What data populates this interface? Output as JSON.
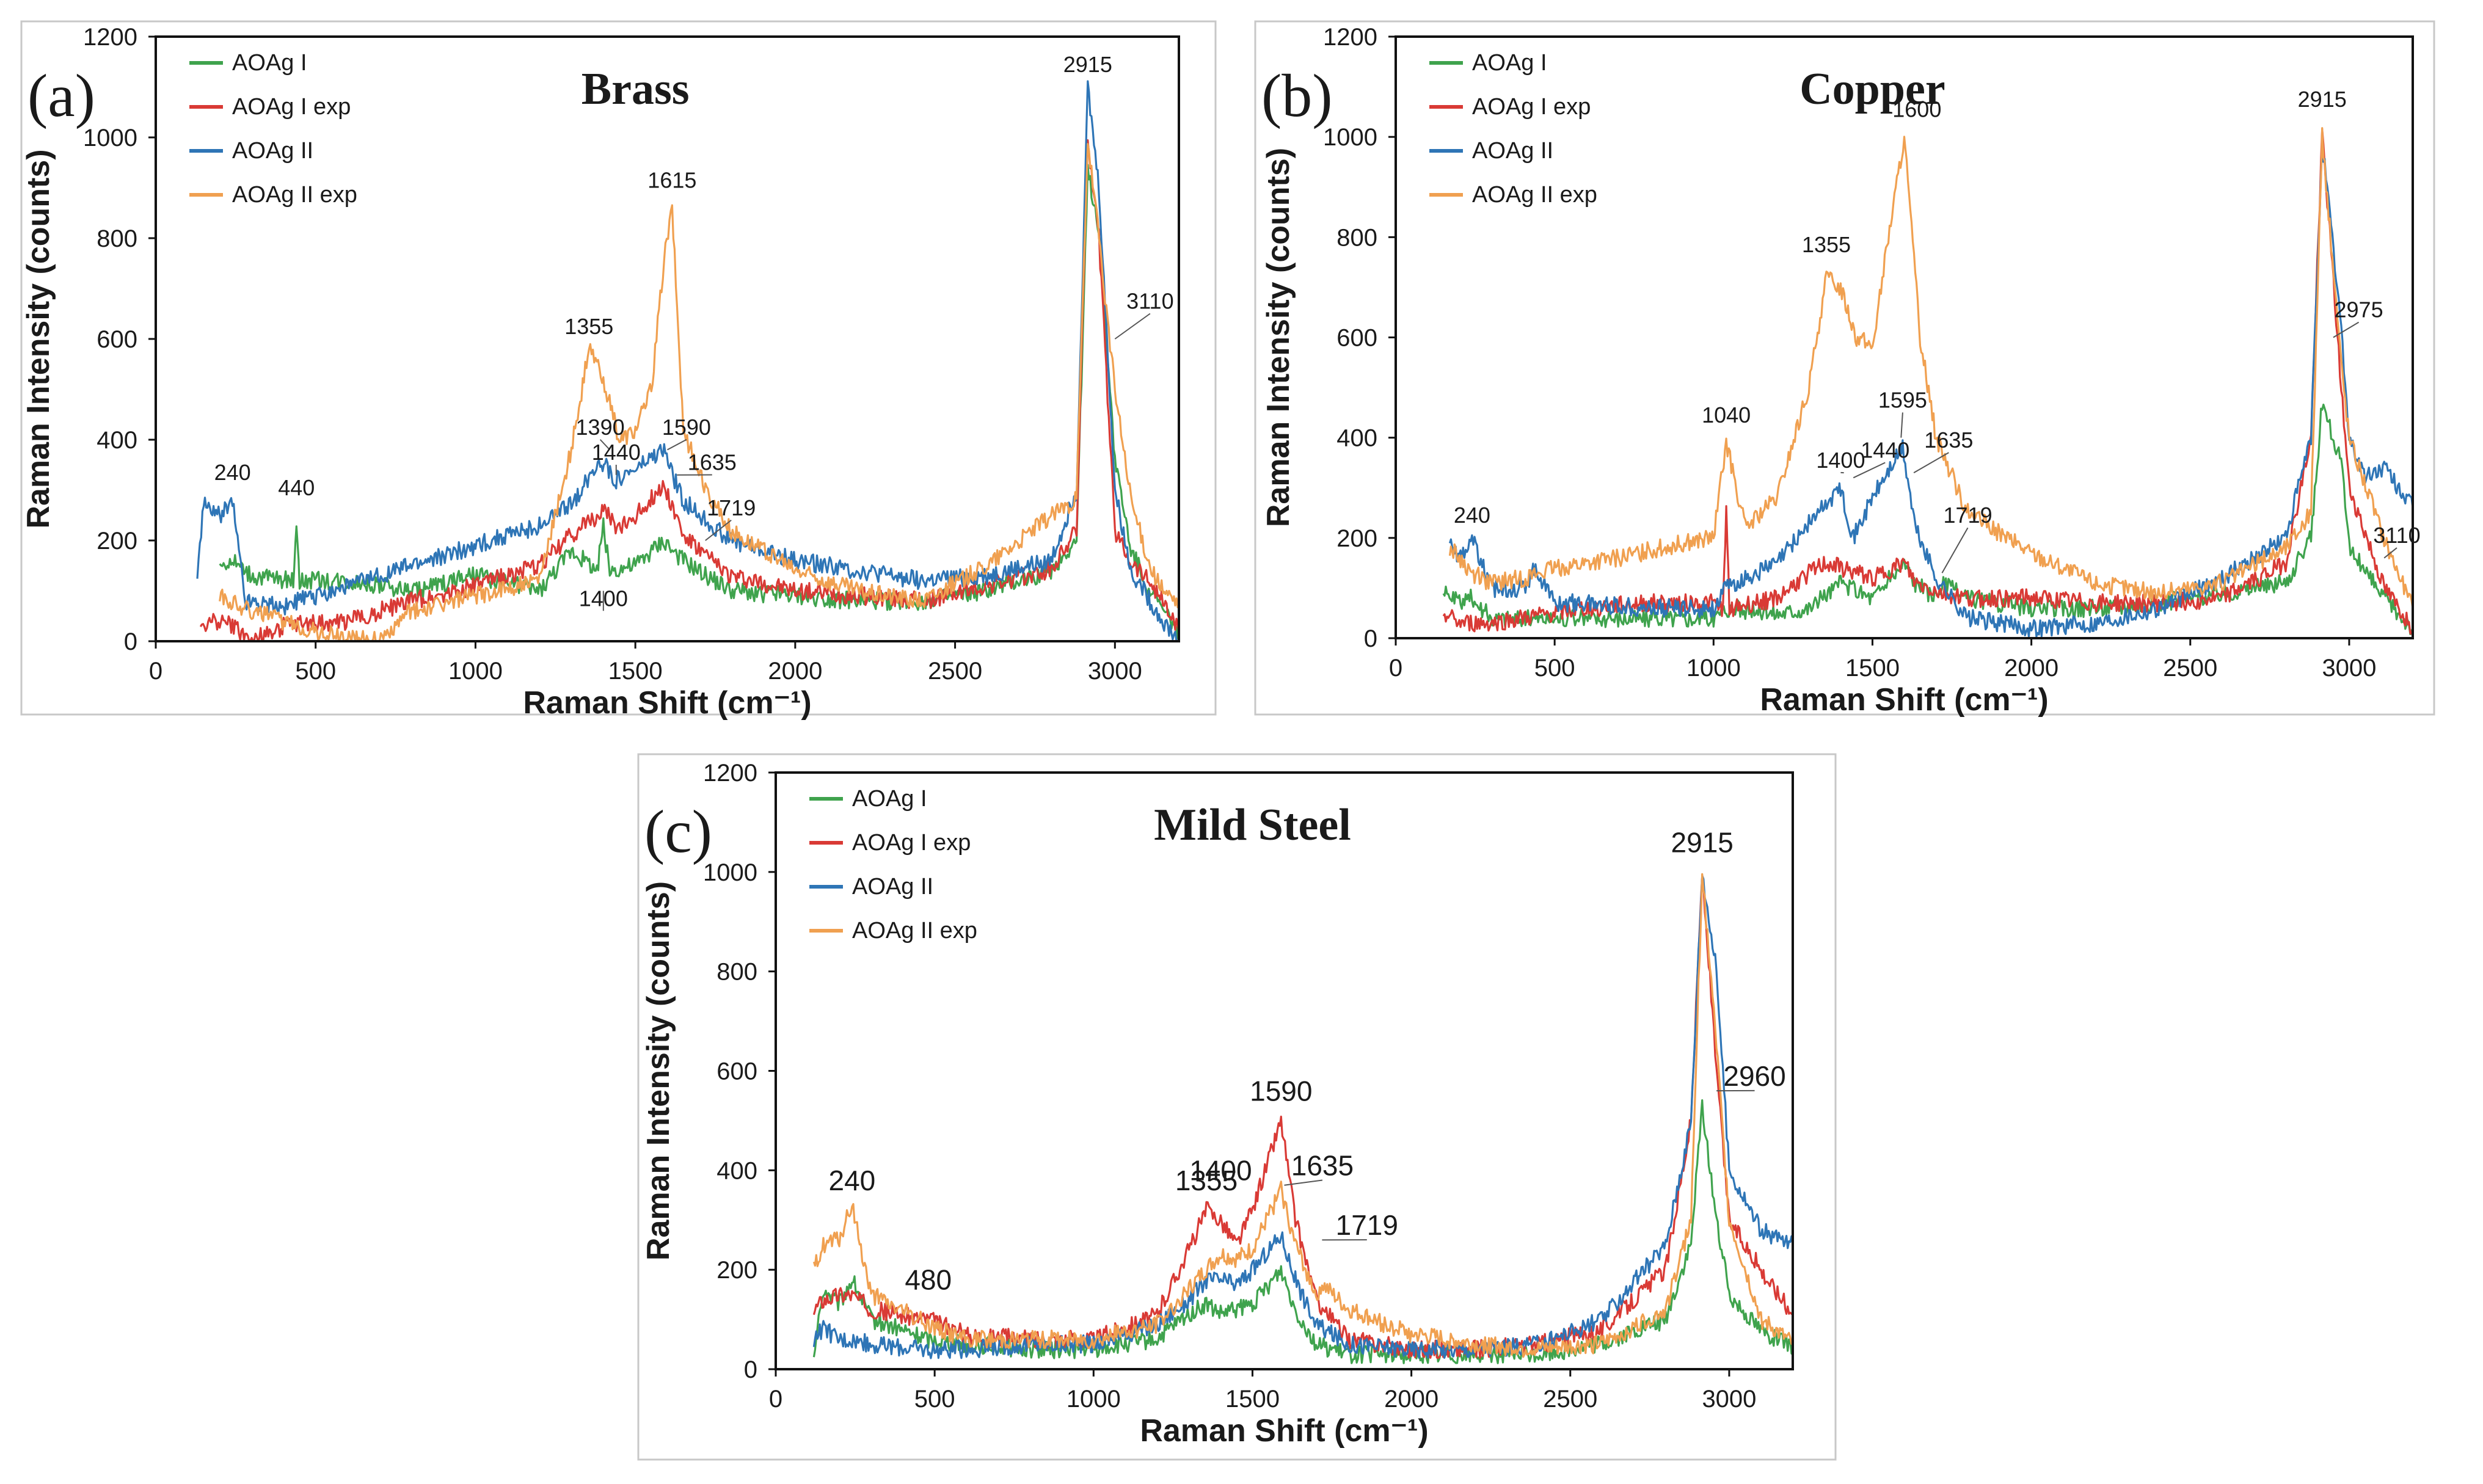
{
  "figure": {
    "colors": {
      "aoag1": "#3fa34d",
      "aoag1_exp": "#d93a35",
      "aoag2": "#2e75b6",
      "aoag2_exp": "#f0a050"
    }
  },
  "chart_data": [
    {
      "type": "line",
      "panel_label": "(a)",
      "title": "Brass",
      "xlabel": "Raman Shift (cm⁻¹)",
      "ylabel": "Raman Intensity (counts)",
      "xlim": [
        0,
        3200
      ],
      "ylim": [
        0,
        1200
      ],
      "xticks": [
        "0",
        "500",
        "1000",
        "1500",
        "2000",
        "2500",
        "3000"
      ],
      "yticks": [
        "0",
        "200",
        "400",
        "600",
        "800",
        "1000",
        "1200"
      ],
      "legend_position": "top-left",
      "series": [
        {
          "name": "AOAg I",
          "color_key": "aoag1",
          "x": [
            200,
            240,
            300,
            430,
            440,
            450,
            600,
            800,
            1000,
            1200,
            1300,
            1380,
            1400,
            1420,
            1500,
            1590,
            1615,
            1650,
            1719,
            1800,
            2000,
            2200,
            2400,
            2600,
            2800,
            2880,
            2915,
            2950,
            3000,
            3050,
            3110,
            3150,
            3200
          ],
          "y": [
            150,
            160,
            130,
            120,
            240,
            120,
            120,
            100,
            130,
            100,
            180,
            140,
            230,
            140,
            150,
            200,
            180,
            160,
            130,
            100,
            90,
            80,
            80,
            100,
            140,
            200,
            930,
            820,
            360,
            180,
            100,
            60,
            20
          ]
        },
        {
          "name": "AOAg I exp",
          "color_key": "aoag1_exp",
          "x": [
            140,
            200,
            240,
            300,
            400,
            600,
            800,
            1000,
            1200,
            1300,
            1400,
            1450,
            1500,
            1590,
            1615,
            1650,
            1719,
            1800,
            2000,
            2200,
            2400,
            2600,
            2800,
            2880,
            2915,
            2950,
            3000,
            3050,
            3110,
            3150,
            3200
          ],
          "y": [
            30,
            40,
            30,
            0,
            30,
            40,
            80,
            110,
            150,
            210,
            260,
            220,
            250,
            310,
            270,
            210,
            170,
            130,
            100,
            90,
            80,
            110,
            140,
            220,
            1000,
            800,
            220,
            160,
            120,
            80,
            20
          ]
        },
        {
          "name": "AOAg II",
          "color_key": "aoag2",
          "x": [
            130,
            150,
            200,
            240,
            280,
            300,
            400,
            600,
            800,
            1000,
            1200,
            1300,
            1390,
            1440,
            1500,
            1590,
            1615,
            1650,
            1719,
            1800,
            2000,
            2200,
            2400,
            2600,
            2800,
            2880,
            2915,
            2950,
            3000,
            3050,
            3110,
            3150,
            3200
          ],
          "y": [
            130,
            270,
            250,
            280,
            80,
            80,
            70,
            110,
            150,
            190,
            230,
            270,
            360,
            320,
            340,
            380,
            330,
            280,
            240,
            200,
            160,
            140,
            120,
            130,
            160,
            300,
            1100,
            900,
            300,
            140,
            80,
            40,
            0
          ]
        },
        {
          "name": "AOAg II exp",
          "color_key": "aoag2_exp",
          "x": [
            200,
            300,
            400,
            500,
            600,
            700,
            800,
            1000,
            1200,
            1300,
            1355,
            1400,
            1450,
            1500,
            1550,
            1590,
            1615,
            1650,
            1719,
            1800,
            2000,
            2200,
            2400,
            2600,
            2700,
            2800,
            2880,
            2915,
            2950,
            3000,
            3050,
            3110,
            3150,
            3200
          ],
          "y": [
            90,
            60,
            40,
            20,
            10,
            0,
            60,
            90,
            120,
            380,
            580,
            520,
            400,
            420,
            500,
            760,
            860,
            420,
            300,
            220,
            140,
            100,
            80,
            150,
            200,
            250,
            280,
            990,
            800,
            500,
            280,
            150,
            100,
            70
          ]
        }
      ],
      "annotations": [
        "240",
        "440",
        "1355",
        "1390",
        "1440",
        "1615",
        "1590",
        "1635",
        "1719",
        "1400",
        "2915",
        "3110"
      ]
    },
    {
      "type": "line",
      "panel_label": "(b)",
      "title": "Copper",
      "xlabel": "Raman Shift (cm⁻¹)",
      "ylabel": "Raman Intensity (counts)",
      "xlim": [
        0,
        3200
      ],
      "ylim": [
        0,
        1200
      ],
      "xticks": [
        "0",
        "500",
        "1000",
        "1500",
        "2000",
        "2500",
        "3000"
      ],
      "yticks": [
        "0",
        "200",
        "400",
        "600",
        "800",
        "1000",
        "1200"
      ],
      "legend_position": "top-left",
      "series": [
        {
          "name": "AOAg I",
          "color_key": "aoag1",
          "x": [
            150,
            200,
            240,
            300,
            400,
            600,
            800,
            1000,
            1040,
            1200,
            1300,
            1400,
            1500,
            1600,
            1635,
            1700,
            1719,
            1800,
            2000,
            2200,
            2400,
            2600,
            2800,
            2880,
            2915,
            2975,
            3000,
            3110,
            3200
          ],
          "y": [
            90,
            70,
            80,
            40,
            40,
            40,
            40,
            40,
            60,
            50,
            60,
            110,
            80,
            150,
            110,
            80,
            110,
            80,
            60,
            60,
            70,
            90,
            110,
            200,
            470,
            350,
            180,
            80,
            20
          ]
        },
        {
          "name": "AOAg I exp",
          "color_key": "aoag1_exp",
          "x": [
            150,
            200,
            300,
            400,
            600,
            800,
            1000,
            1030,
            1040,
            1050,
            1200,
            1300,
            1355,
            1400,
            1500,
            1600,
            1635,
            1719,
            1800,
            2000,
            2200,
            2400,
            2600,
            2800,
            2880,
            2915,
            2975,
            3000,
            3110,
            3200
          ],
          "y": [
            50,
            30,
            30,
            40,
            60,
            70,
            70,
            60,
            250,
            60,
            80,
            130,
            150,
            140,
            120,
            150,
            110,
            90,
            80,
            80,
            70,
            70,
            80,
            150,
            400,
            1010,
            500,
            300,
            100,
            20
          ]
        },
        {
          "name": "AOAg II",
          "color_key": "aoag2",
          "x": [
            170,
            200,
            240,
            300,
            400,
            440,
            500,
            600,
            800,
            1000,
            1040,
            1200,
            1300,
            1400,
            1440,
            1500,
            1595,
            1635,
            1700,
            1800,
            2000,
            2200,
            2400,
            2600,
            2800,
            2880,
            2915,
            2975,
            3000,
            3050,
            3110,
            3200
          ],
          "y": [
            200,
            160,
            200,
            100,
            100,
            140,
            70,
            70,
            60,
            60,
            100,
            150,
            230,
            300,
            200,
            280,
            380,
            220,
            120,
            40,
            20,
            30,
            60,
            120,
            200,
            400,
            990,
            620,
            400,
            320,
            340,
            260
          ]
        },
        {
          "name": "AOAg II exp",
          "color_key": "aoag2_exp",
          "x": [
            170,
            200,
            240,
            300,
            400,
            500,
            700,
            900,
            1000,
            1040,
            1100,
            1200,
            1300,
            1355,
            1400,
            1450,
            1500,
            1550,
            1600,
            1650,
            1700,
            1800,
            2000,
            2200,
            2400,
            2600,
            2800,
            2880,
            2915,
            2975,
            3000,
            3110,
            3200
          ],
          "y": [
            180,
            160,
            130,
            110,
            120,
            140,
            160,
            190,
            200,
            390,
            220,
            280,
            500,
            720,
            700,
            600,
            580,
            800,
            1000,
            600,
            400,
            250,
            170,
            110,
            90,
            110,
            180,
            250,
            1000,
            550,
            400,
            200,
            60
          ]
        }
      ],
      "annotations": [
        "240",
        "1040",
        "1355",
        "1600",
        "1400",
        "1440",
        "1595",
        "1635",
        "1719",
        "2915",
        "2975",
        "3110"
      ]
    },
    {
      "type": "line",
      "panel_label": "(c)",
      "title": "Mild Steel",
      "xlabel": "Raman Shift (cm⁻¹)",
      "ylabel": "Raman Intensity (counts)",
      "xlim": [
        0,
        3200
      ],
      "ylim": [
        0,
        1200
      ],
      "xticks": [
        "0",
        "500",
        "1000",
        "1500",
        "2000",
        "2500",
        "3000"
      ],
      "yticks": [
        "0",
        "200",
        "400",
        "600",
        "800",
        "1000",
        "1200"
      ],
      "legend_position": "top-left",
      "series": [
        {
          "name": "AOAg I",
          "color_key": "aoag1",
          "x": [
            120,
            150,
            200,
            240,
            300,
            480,
            600,
            800,
            1000,
            1200,
            1300,
            1355,
            1400,
            1500,
            1590,
            1635,
            1700,
            1800,
            2000,
            2200,
            2400,
            2600,
            2800,
            2880,
            2915,
            2960,
            3000,
            3100,
            3200
          ],
          "y": [
            30,
            160,
            130,
            180,
            100,
            60,
            50,
            40,
            40,
            60,
            110,
            130,
            110,
            130,
            200,
            120,
            50,
            30,
            30,
            30,
            30,
            50,
            100,
            250,
            530,
            300,
            150,
            80,
            40
          ]
        },
        {
          "name": "AOAg I exp",
          "color_key": "aoag1_exp",
          "x": [
            120,
            150,
            200,
            240,
            300,
            480,
            600,
            800,
            1000,
            1200,
            1300,
            1355,
            1400,
            1450,
            1500,
            1590,
            1635,
            1700,
            1800,
            2000,
            2200,
            2400,
            2600,
            2800,
            2880,
            2915,
            2960,
            3000,
            3100,
            3200
          ],
          "y": [
            120,
            140,
            150,
            150,
            120,
            100,
            70,
            60,
            60,
            110,
            240,
            320,
            300,
            250,
            320,
            500,
            300,
            140,
            60,
            40,
            40,
            50,
            80,
            200,
            500,
            1000,
            600,
            300,
            200,
            110
          ]
        },
        {
          "name": "AOAg II",
          "color_key": "aoag2",
          "x": [
            120,
            150,
            200,
            240,
            300,
            480,
            600,
            800,
            1000,
            1200,
            1300,
            1355,
            1400,
            1450,
            1500,
            1590,
            1635,
            1700,
            1800,
            2000,
            2200,
            2400,
            2600,
            2800,
            2880,
            2915,
            2960,
            3000,
            3100,
            3200
          ],
          "y": [
            60,
            80,
            60,
            60,
            50,
            40,
            40,
            50,
            50,
            90,
            140,
            180,
            180,
            170,
            200,
            270,
            180,
            90,
            50,
            40,
            40,
            50,
            100,
            250,
            500,
            1000,
            800,
            400,
            280,
            250
          ]
        },
        {
          "name": "AOAg II exp",
          "color_key": "aoag2_exp",
          "x": [
            120,
            150,
            200,
            240,
            300,
            480,
            600,
            800,
            1000,
            1200,
            1300,
            1355,
            1400,
            1450,
            1500,
            1590,
            1635,
            1700,
            1719,
            1800,
            2000,
            2200,
            2400,
            2600,
            2800,
            2880,
            2915,
            2960,
            3000,
            3100,
            3200
          ],
          "y": [
            200,
            250,
            260,
            330,
            150,
            90,
            60,
            60,
            60,
            90,
            160,
            200,
            230,
            220,
            240,
            360,
            250,
            150,
            170,
            120,
            70,
            50,
            40,
            50,
            120,
            300,
            1000,
            650,
            300,
            100,
            50
          ]
        }
      ],
      "annotations": [
        "240",
        "480",
        "1355",
        "1400",
        "1590",
        "1635",
        "1719",
        "2915",
        "2960"
      ]
    }
  ]
}
